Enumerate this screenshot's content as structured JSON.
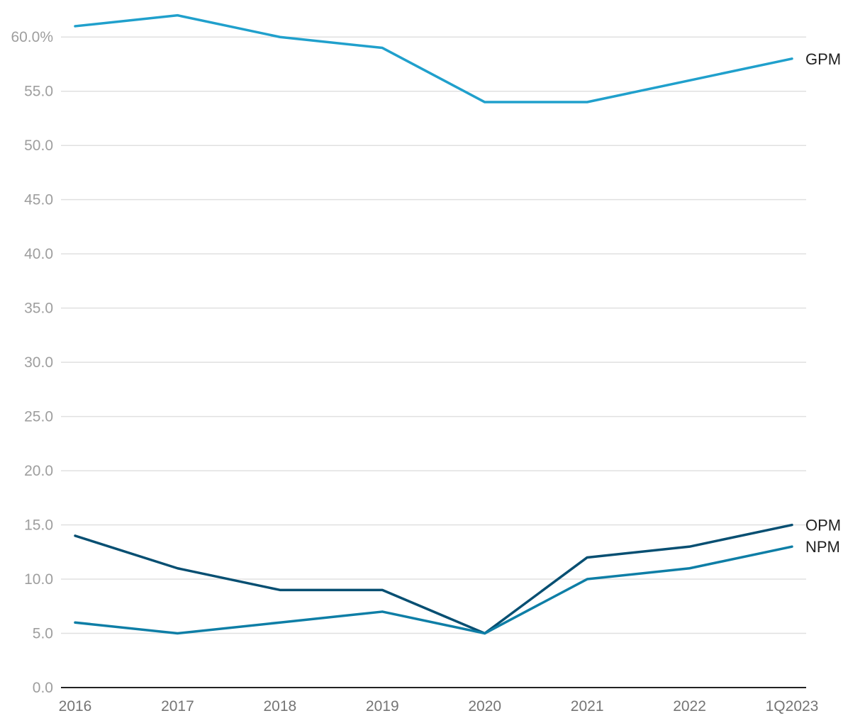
{
  "chart_data": {
    "type": "line",
    "title": "",
    "xlabel": "",
    "ylabel": "",
    "categories": [
      "2016",
      "2017",
      "2018",
      "2019",
      "2020",
      "2021",
      "2022",
      "1Q2023"
    ],
    "y_ticks": [
      "0.0",
      "5.0",
      "10.0",
      "15.0",
      "20.0",
      "25.0",
      "30.0",
      "35.0",
      "40.0",
      "45.0",
      "50.0",
      "55.0",
      "60.0%"
    ],
    "ylim": [
      0,
      62.5
    ],
    "grid": true,
    "legend": "direct labels at line ends",
    "series": [
      {
        "name": "GPM",
        "color": "#20a0cc",
        "values": [
          61,
          62,
          60,
          59,
          54,
          54,
          56,
          58
        ]
      },
      {
        "name": "OPM",
        "color": "#074f72",
        "values": [
          14,
          11,
          9,
          9,
          5,
          12,
          13,
          15
        ]
      },
      {
        "name": "NPM",
        "color": "#0e7ea6",
        "values": [
          6,
          5,
          6,
          7,
          5,
          10,
          11,
          13
        ]
      }
    ]
  }
}
